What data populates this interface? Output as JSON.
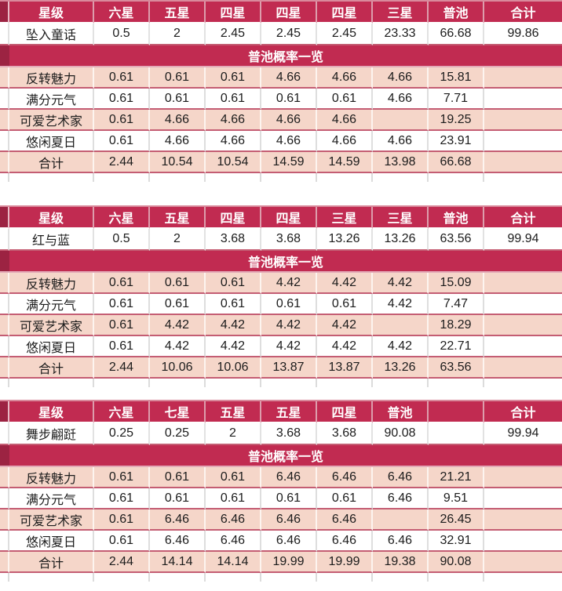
{
  "banner_label": "普池概率一览",
  "palette": {
    "header_crimson": "#c12b51",
    "margin_dark_crimson": "#9c2342",
    "row_pink": "#f5d6c9",
    "row_divider_rose": "#c45d73",
    "gridline_gray": "#dcdcdc",
    "header_text": "#ffffff",
    "body_text": "#1c1c1c"
  },
  "tables": [
    {
      "header": [
        "星级",
        "六星",
        "五星",
        "四星",
        "四星",
        "四星",
        "三星",
        "普池",
        "合计"
      ],
      "feature_row": {
        "label": "坠入童话",
        "values": [
          "0.5",
          "2",
          "2.45",
          "2.45",
          "2.45",
          "23.33",
          "66.68"
        ],
        "total": "99.86"
      },
      "pool_rows": [
        {
          "label": "反转魅力",
          "values": [
            "0.61",
            "0.61",
            "0.61",
            "4.66",
            "4.66",
            "4.66",
            "15.81"
          ],
          "total": ""
        },
        {
          "label": "满分元气",
          "values": [
            "0.61",
            "0.61",
            "0.61",
            "0.61",
            "0.61",
            "4.66",
            "7.71"
          ],
          "total": ""
        },
        {
          "label": "可爱艺术家",
          "values": [
            "0.61",
            "4.66",
            "4.66",
            "4.66",
            "4.66",
            "",
            "19.25"
          ],
          "total": ""
        },
        {
          "label": "悠闲夏日",
          "values": [
            "0.61",
            "4.66",
            "4.66",
            "4.66",
            "4.66",
            "4.66",
            "23.91"
          ],
          "total": ""
        },
        {
          "label": "合计",
          "values": [
            "2.44",
            "10.54",
            "10.54",
            "14.59",
            "14.59",
            "13.98",
            "66.68"
          ],
          "total": ""
        }
      ]
    },
    {
      "header": [
        "星级",
        "六星",
        "五星",
        "四星",
        "四星",
        "三星",
        "三星",
        "普池",
        "合计"
      ],
      "feature_row": {
        "label": "红与蓝",
        "values": [
          "0.5",
          "2",
          "3.68",
          "3.68",
          "13.26",
          "13.26",
          "63.56"
        ],
        "total": "99.94"
      },
      "pool_rows": [
        {
          "label": "反转魅力",
          "values": [
            "0.61",
            "0.61",
            "0.61",
            "4.42",
            "4.42",
            "4.42",
            "15.09"
          ],
          "total": ""
        },
        {
          "label": "满分元气",
          "values": [
            "0.61",
            "0.61",
            "0.61",
            "0.61",
            "0.61",
            "4.42",
            "7.47"
          ],
          "total": ""
        },
        {
          "label": "可爱艺术家",
          "values": [
            "0.61",
            "4.42",
            "4.42",
            "4.42",
            "4.42",
            "",
            "18.29"
          ],
          "total": ""
        },
        {
          "label": "悠闲夏日",
          "values": [
            "0.61",
            "4.42",
            "4.42",
            "4.42",
            "4.42",
            "4.42",
            "22.71"
          ],
          "total": ""
        },
        {
          "label": "合计",
          "values": [
            "2.44",
            "10.06",
            "10.06",
            "13.87",
            "13.87",
            "13.26",
            "63.56"
          ],
          "total": ""
        }
      ]
    },
    {
      "header": [
        "星级",
        "六星",
        "七星",
        "五星",
        "五星",
        "四星",
        "普池",
        "",
        "合计"
      ],
      "feature_row": {
        "label": "舞步翩跹",
        "values": [
          "0.25",
          "0.25",
          "2",
          "3.68",
          "3.68",
          "90.08",
          ""
        ],
        "total": "99.94"
      },
      "pool_rows": [
        {
          "label": "反转魅力",
          "values": [
            "0.61",
            "0.61",
            "0.61",
            "6.46",
            "6.46",
            "6.46",
            "21.21"
          ],
          "total": ""
        },
        {
          "label": "满分元气",
          "values": [
            "0.61",
            "0.61",
            "0.61",
            "0.61",
            "0.61",
            "6.46",
            "9.51"
          ],
          "total": ""
        },
        {
          "label": "可爱艺术家",
          "values": [
            "0.61",
            "6.46",
            "6.46",
            "6.46",
            "6.46",
            "",
            "26.45"
          ],
          "total": ""
        },
        {
          "label": "悠闲夏日",
          "values": [
            "0.61",
            "6.46",
            "6.46",
            "6.46",
            "6.46",
            "6.46",
            "32.91"
          ],
          "total": ""
        },
        {
          "label": "合计",
          "values": [
            "2.44",
            "14.14",
            "14.14",
            "19.99",
            "19.99",
            "19.38",
            "90.08"
          ],
          "total": ""
        }
      ]
    }
  ]
}
